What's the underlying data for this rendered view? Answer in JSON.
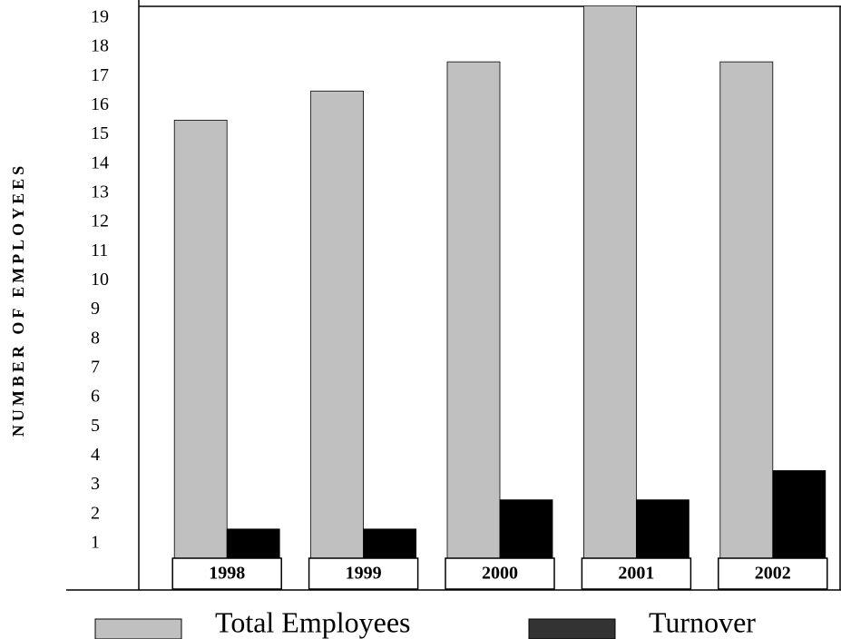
{
  "chart_data": {
    "type": "bar",
    "y_axis_label": "NUMBER OF EMPLOYEES",
    "categories": [
      "1998",
      "1999",
      "2000",
      "2001",
      "2002"
    ],
    "series": [
      {
        "name": "Total Employees",
        "color": "#c0c0c0",
        "values": [
          15.5,
          16.5,
          17.5,
          19.5,
          17.5
        ]
      },
      {
        "name": "Turnover",
        "color": "#000000",
        "values": [
          1.5,
          1.5,
          2.5,
          2.5,
          3.5
        ]
      }
    ],
    "ylim": [
      0.5,
      19.4
    ],
    "yticks": [
      1,
      2,
      3,
      4,
      5,
      6,
      7,
      8,
      9,
      10,
      11,
      12,
      13,
      14,
      15,
      16,
      17,
      18,
      19
    ],
    "grid": false,
    "legend": "bottom"
  }
}
